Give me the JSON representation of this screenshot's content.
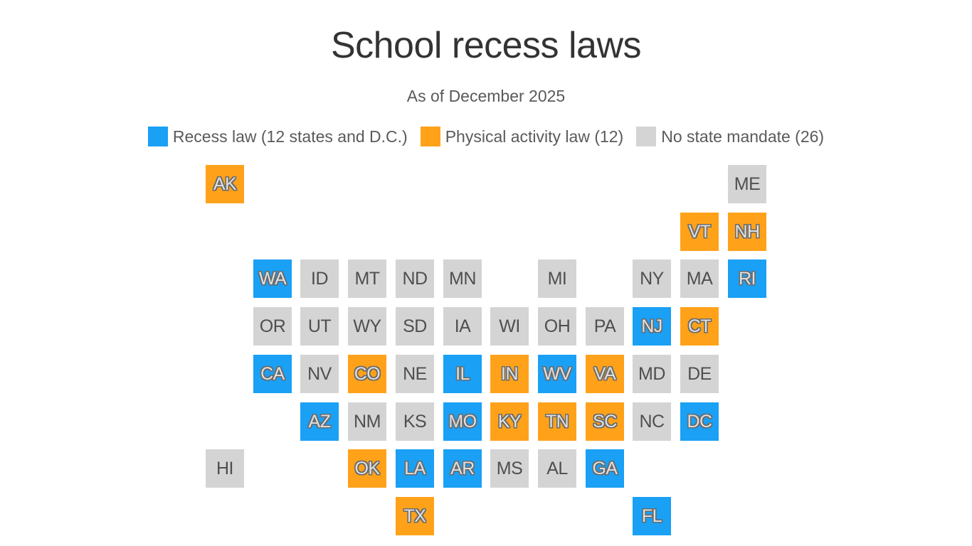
{
  "title": "School recess laws",
  "subtitle": "As of December 2025",
  "legend": [
    {
      "label": "Recess law (12 states and D.C.)",
      "color": "#1aa0f5"
    },
    {
      "label": "Physical activity law (12)",
      "color": "#ffa21a"
    },
    {
      "label": "No state mandate (26)",
      "color": "#d4d4d4"
    }
  ],
  "categories": {
    "recess": "#1aa0f5",
    "activity": "#ffa21a",
    "none": "#d4d4d4"
  },
  "tiles": [
    {
      "abbr": "AK",
      "cat": "activity",
      "col": 0,
      "row": 0
    },
    {
      "abbr": "ME",
      "cat": "none",
      "col": 11,
      "row": 0
    },
    {
      "abbr": "VT",
      "cat": "activity",
      "col": 10,
      "row": 1
    },
    {
      "abbr": "NH",
      "cat": "activity",
      "col": 11,
      "row": 1
    },
    {
      "abbr": "WA",
      "cat": "recess",
      "col": 1,
      "row": 2
    },
    {
      "abbr": "ID",
      "cat": "none",
      "col": 2,
      "row": 2
    },
    {
      "abbr": "MT",
      "cat": "none",
      "col": 3,
      "row": 2
    },
    {
      "abbr": "ND",
      "cat": "none",
      "col": 4,
      "row": 2
    },
    {
      "abbr": "MN",
      "cat": "none",
      "col": 5,
      "row": 2
    },
    {
      "abbr": "MI",
      "cat": "none",
      "col": 7,
      "row": 2
    },
    {
      "abbr": "NY",
      "cat": "none",
      "col": 9,
      "row": 2
    },
    {
      "abbr": "MA",
      "cat": "none",
      "col": 10,
      "row": 2
    },
    {
      "abbr": "RI",
      "cat": "recess",
      "col": 11,
      "row": 2
    },
    {
      "abbr": "OR",
      "cat": "none",
      "col": 1,
      "row": 3
    },
    {
      "abbr": "UT",
      "cat": "none",
      "col": 2,
      "row": 3
    },
    {
      "abbr": "WY",
      "cat": "none",
      "col": 3,
      "row": 3
    },
    {
      "abbr": "SD",
      "cat": "none",
      "col": 4,
      "row": 3
    },
    {
      "abbr": "IA",
      "cat": "none",
      "col": 5,
      "row": 3
    },
    {
      "abbr": "WI",
      "cat": "none",
      "col": 6,
      "row": 3
    },
    {
      "abbr": "OH",
      "cat": "none",
      "col": 7,
      "row": 3
    },
    {
      "abbr": "PA",
      "cat": "none",
      "col": 8,
      "row": 3
    },
    {
      "abbr": "NJ",
      "cat": "recess",
      "col": 9,
      "row": 3
    },
    {
      "abbr": "CT",
      "cat": "activity",
      "col": 10,
      "row": 3
    },
    {
      "abbr": "CA",
      "cat": "recess",
      "col": 1,
      "row": 4
    },
    {
      "abbr": "NV",
      "cat": "none",
      "col": 2,
      "row": 4
    },
    {
      "abbr": "CO",
      "cat": "activity",
      "col": 3,
      "row": 4
    },
    {
      "abbr": "NE",
      "cat": "none",
      "col": 4,
      "row": 4
    },
    {
      "abbr": "IL",
      "cat": "recess",
      "col": 5,
      "row": 4
    },
    {
      "abbr": "IN",
      "cat": "activity",
      "col": 6,
      "row": 4
    },
    {
      "abbr": "WV",
      "cat": "recess",
      "col": 7,
      "row": 4
    },
    {
      "abbr": "VA",
      "cat": "activity",
      "col": 8,
      "row": 4
    },
    {
      "abbr": "MD",
      "cat": "none",
      "col": 9,
      "row": 4
    },
    {
      "abbr": "DE",
      "cat": "none",
      "col": 10,
      "row": 4
    },
    {
      "abbr": "AZ",
      "cat": "recess",
      "col": 2,
      "row": 5
    },
    {
      "abbr": "NM",
      "cat": "none",
      "col": 3,
      "row": 5
    },
    {
      "abbr": "KS",
      "cat": "none",
      "col": 4,
      "row": 5
    },
    {
      "abbr": "MO",
      "cat": "recess",
      "col": 5,
      "row": 5
    },
    {
      "abbr": "KY",
      "cat": "activity",
      "col": 6,
      "row": 5
    },
    {
      "abbr": "TN",
      "cat": "activity",
      "col": 7,
      "row": 5
    },
    {
      "abbr": "SC",
      "cat": "activity",
      "col": 8,
      "row": 5
    },
    {
      "abbr": "NC",
      "cat": "none",
      "col": 9,
      "row": 5
    },
    {
      "abbr": "DC",
      "cat": "recess",
      "col": 10,
      "row": 5
    },
    {
      "abbr": "HI",
      "cat": "none",
      "col": 0,
      "row": 6
    },
    {
      "abbr": "OK",
      "cat": "activity",
      "col": 3,
      "row": 6
    },
    {
      "abbr": "LA",
      "cat": "recess",
      "col": 4,
      "row": 6
    },
    {
      "abbr": "AR",
      "cat": "recess",
      "col": 5,
      "row": 6
    },
    {
      "abbr": "MS",
      "cat": "none",
      "col": 6,
      "row": 6
    },
    {
      "abbr": "AL",
      "cat": "none",
      "col": 7,
      "row": 6
    },
    {
      "abbr": "GA",
      "cat": "recess",
      "col": 8,
      "row": 6
    },
    {
      "abbr": "TX",
      "cat": "activity",
      "col": 4,
      "row": 7
    },
    {
      "abbr": "FL",
      "cat": "recess",
      "col": 9,
      "row": 7
    }
  ]
}
